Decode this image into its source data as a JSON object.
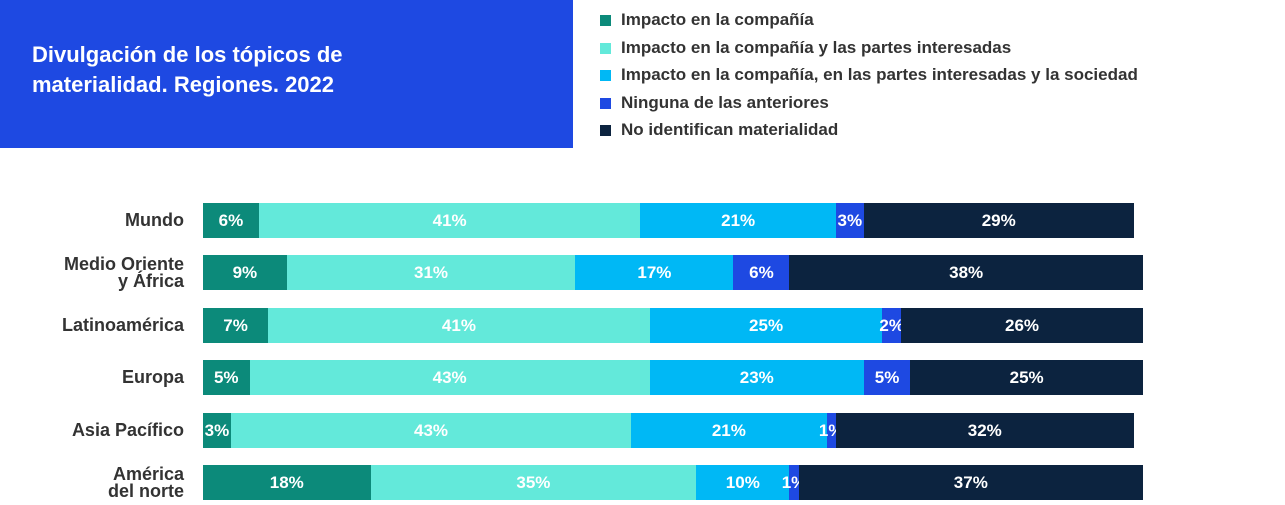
{
  "chart_data": {
    "type": "stacked-bar-horizontal",
    "title": "Divulgación de los tópicos de\nmaterialidad. Regiones. 2022",
    "categories": [
      "Mundo",
      "Medio Oriente\ny África",
      "Latinoamérica",
      "Europa",
      "Asia Pacífico",
      "América\ndel norte"
    ],
    "xlim": [
      0,
      101
    ],
    "series": [
      {
        "name": "Impacto en la compañía",
        "color": "#0c8a7a",
        "values": [
          6,
          9,
          7,
          5,
          3,
          18
        ],
        "value_labels": [
          "6%",
          "9%",
          "7%",
          "5%",
          "3%",
          "18%"
        ]
      },
      {
        "name": "Impacto en la compañía y las partes interesadas",
        "color": "#63e9da",
        "values": [
          41,
          31,
          41,
          43,
          43,
          35
        ],
        "value_labels": [
          "41%",
          "31%",
          "41%",
          "43%",
          "43%",
          "35%"
        ]
      },
      {
        "name": "Impacto en la compañía, en las partes interesadas y la sociedad",
        "color": "#00b8f5",
        "values": [
          21,
          17,
          25,
          23,
          21,
          10
        ],
        "value_labels": [
          "21%",
          "17%",
          "25%",
          "23%",
          "21%",
          "10%"
        ]
      },
      {
        "name": "Ninguna de las anteriores",
        "color": "#1e49e2",
        "values": [
          3,
          6,
          2,
          5,
          1,
          1
        ],
        "value_labels": [
          "3%",
          "6%",
          "2%",
          "5%",
          "1%",
          "1%"
        ]
      },
      {
        "name": "No identifican materialidad",
        "color": "#0c233f",
        "values": [
          29,
          38,
          26,
          25,
          32,
          37
        ],
        "value_labels": [
          "29%",
          "38%",
          "26%",
          "25%",
          "32%",
          "37%"
        ]
      }
    ]
  }
}
